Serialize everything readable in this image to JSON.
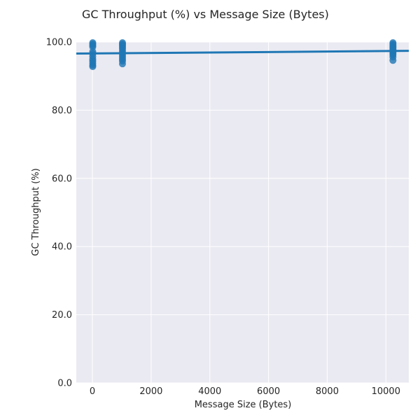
{
  "chart_data": {
    "type": "scatter",
    "title": "GC Throughput (%) vs Message Size (Bytes)",
    "xlabel": "Message Size (Bytes)",
    "ylabel": "GC Throughput (%)",
    "xlim": [
      -550,
      10780
    ],
    "ylim": [
      0,
      100
    ],
    "xticks": [
      0,
      2000,
      4000,
      6000,
      8000,
      10000
    ],
    "yticks": [
      0,
      20,
      40,
      60,
      80,
      100
    ],
    "xtick_labels": [
      "0",
      "2000",
      "4000",
      "6000",
      "8000",
      "10000"
    ],
    "ytick_labels": [
      "0.0",
      "20.0",
      "40.0",
      "60.0",
      "80.0",
      "100.0"
    ],
    "grid": true,
    "background": "#eaeaf2",
    "grid_color": "#ffffff",
    "series_color": "#1f77b4",
    "points": [
      {
        "x": 10,
        "y": 99.8
      },
      {
        "x": 10,
        "y": 99.4
      },
      {
        "x": 10,
        "y": 99.0
      },
      {
        "x": 10,
        "y": 98.6
      },
      {
        "x": 10,
        "y": 97.2
      },
      {
        "x": 10,
        "y": 96.6
      },
      {
        "x": 10,
        "y": 95.8
      },
      {
        "x": 10,
        "y": 95.0
      },
      {
        "x": 10,
        "y": 94.4
      },
      {
        "x": 10,
        "y": 93.8
      },
      {
        "x": 10,
        "y": 93.2
      },
      {
        "x": 10,
        "y": 92.8
      },
      {
        "x": 1024,
        "y": 99.8
      },
      {
        "x": 1024,
        "y": 99.4
      },
      {
        "x": 1024,
        "y": 99.0
      },
      {
        "x": 1024,
        "y": 98.5
      },
      {
        "x": 1024,
        "y": 98.0
      },
      {
        "x": 1024,
        "y": 97.4
      },
      {
        "x": 1024,
        "y": 96.8
      },
      {
        "x": 1024,
        "y": 96.2
      },
      {
        "x": 1024,
        "y": 95.6
      },
      {
        "x": 1024,
        "y": 95.0
      },
      {
        "x": 1024,
        "y": 94.4
      },
      {
        "x": 1024,
        "y": 93.6
      },
      {
        "x": 10240,
        "y": 99.8
      },
      {
        "x": 10240,
        "y": 99.4
      },
      {
        "x": 10240,
        "y": 99.0
      },
      {
        "x": 10240,
        "y": 98.6
      },
      {
        "x": 10240,
        "y": 98.2
      },
      {
        "x": 10240,
        "y": 97.8
      },
      {
        "x": 10240,
        "y": 97.4
      },
      {
        "x": 10240,
        "y": 97.0
      },
      {
        "x": 10240,
        "y": 96.6
      },
      {
        "x": 10240,
        "y": 96.2
      },
      {
        "x": 10240,
        "y": 95.6
      },
      {
        "x": 10240,
        "y": 94.6
      }
    ],
    "trend_line": {
      "x": [
        -550,
        10780
      ],
      "y": [
        96.6,
        97.4
      ]
    }
  }
}
